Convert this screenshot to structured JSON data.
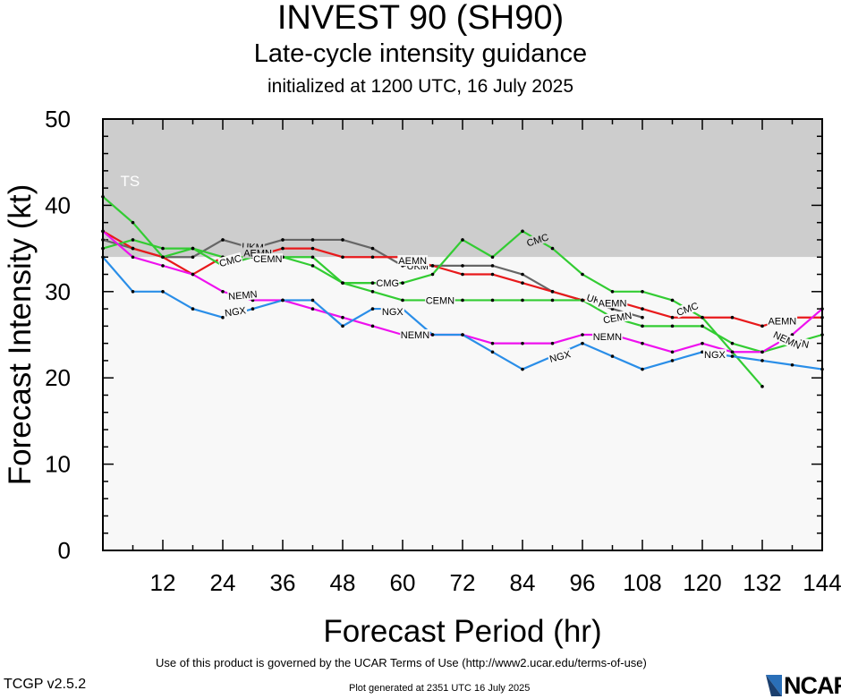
{
  "header": {
    "title": "INVEST 90 (SH90)",
    "subtitle": "Late-cycle intensity guidance",
    "init_line": "initialized at 1200 UTC, 16 July 2025"
  },
  "footer": {
    "terms": "Use of this product is governed by the UCAR Terms of Use (http://www2.ucar.edu/terms-of-use)",
    "version": "TCGP v2.5.2",
    "generated": "Plot generated at 2351 UTC   16 July 2025",
    "logo_text": "NCAR"
  },
  "chart_data": {
    "type": "line",
    "title": "INVEST 90 (SH90)",
    "xlabel": "Forecast Period (hr)",
    "ylabel": "Forecast Intensity (kt)",
    "xlim": [
      0,
      144
    ],
    "ylim": [
      0,
      50
    ],
    "xticks": [
      12,
      24,
      36,
      48,
      60,
      72,
      84,
      96,
      108,
      120,
      132,
      144
    ],
    "yticks": [
      0,
      10,
      20,
      30,
      40,
      50
    ],
    "bands": [
      {
        "label": "TS",
        "from": 34,
        "to": 50,
        "color": "#cdcdcd"
      },
      {
        "label": "",
        "from": 0,
        "to": 34,
        "color": "#f8f8f8"
      }
    ],
    "series": [
      {
        "name": "UKM",
        "color": "#666666",
        "x": [
          0,
          6,
          12,
          18,
          24,
          30,
          36,
          42,
          48,
          54,
          60,
          66,
          72,
          78,
          84,
          90,
          96,
          102,
          108
        ],
        "y": [
          36,
          35,
          34,
          34,
          36,
          35,
          36,
          36,
          36,
          35,
          33,
          33,
          33,
          33,
          32,
          30,
          29,
          28,
          27
        ],
        "labels": [
          {
            "x": 30,
            "y": 35.2,
            "angle": 3
          },
          {
            "x": 63,
            "y": 33,
            "angle": 0
          },
          {
            "x": 99,
            "y": 29,
            "angle": 18
          }
        ]
      },
      {
        "name": "AEMN",
        "color": "#e8191b",
        "x": [
          0,
          6,
          12,
          18,
          24,
          30,
          36,
          42,
          48,
          54,
          60,
          66,
          72,
          78,
          84,
          90,
          96,
          102,
          108,
          114,
          120,
          126,
          132,
          138,
          144
        ],
        "y": [
          37,
          35,
          34,
          32,
          34,
          34,
          35,
          35,
          34,
          34,
          34,
          33,
          32,
          32,
          31,
          30,
          29,
          29,
          28,
          27,
          27,
          27,
          26,
          27,
          27
        ],
        "labels": [
          {
            "x": 31,
            "y": 34.5,
            "angle": 0
          },
          {
            "x": 62,
            "y": 33.6,
            "angle": 0
          },
          {
            "x": 102,
            "y": 28.7,
            "angle": 0
          },
          {
            "x": 136,
            "y": 26.6,
            "angle": 0
          }
        ]
      },
      {
        "name": "CMC",
        "color": "#33cc33",
        "x": [
          0,
          6,
          12,
          18,
          24,
          30,
          36,
          42,
          48,
          54,
          60,
          66,
          72,
          78,
          84,
          90,
          96,
          102,
          108,
          114,
          120,
          126,
          132
        ],
        "y": [
          41,
          38,
          34,
          35,
          33,
          34,
          34,
          33,
          31,
          31,
          31,
          32,
          36,
          34,
          37,
          35,
          32,
          30,
          30,
          29,
          27,
          23,
          19
        ],
        "labels": [
          {
            "x": 25.5,
            "y": 33.6,
            "angle": -15
          },
          {
            "x": 87,
            "y": 36,
            "angle": -18
          },
          {
            "x": 117,
            "y": 28,
            "angle": -20
          }
        ]
      },
      {
        "name": "CMG",
        "color": "#33cc33",
        "x": [
          48,
          54,
          60
        ],
        "y": [
          31,
          31,
          31
        ],
        "labels": [
          {
            "x": 57,
            "y": 31,
            "angle": 0
          }
        ]
      },
      {
        "name": "CEMN",
        "color": "#33cc33",
        "x": [
          0,
          6,
          12,
          18,
          24,
          30,
          36,
          42,
          48,
          54,
          60,
          66,
          72,
          78,
          84,
          90,
          96,
          102,
          108,
          114,
          120,
          126,
          132,
          138,
          144
        ],
        "y": [
          35,
          36,
          35,
          35,
          34,
          34,
          34,
          34,
          31,
          30,
          29,
          29,
          29,
          29,
          29,
          29,
          29,
          27,
          26,
          26,
          26,
          24,
          23,
          24,
          25
        ],
        "labels": [
          {
            "x": 33,
            "y": 33.8,
            "angle": 0
          },
          {
            "x": 67.5,
            "y": 29,
            "angle": 0
          },
          {
            "x": 103,
            "y": 27,
            "angle": -10
          },
          {
            "x": 138.5,
            "y": 24.2,
            "angle": 12
          }
        ]
      },
      {
        "name": "NEMN",
        "color": "#ee11ee",
        "x": [
          0,
          6,
          12,
          18,
          24,
          30,
          36,
          42,
          48,
          54,
          60,
          66,
          72,
          78,
          84,
          90,
          96,
          102,
          108,
          114,
          120,
          126,
          132,
          138,
          144
        ],
        "y": [
          37,
          34,
          33,
          32,
          30,
          29,
          29,
          28,
          27,
          26,
          25,
          25,
          25,
          24,
          24,
          24,
          25,
          25,
          24,
          23,
          24,
          23,
          23,
          25,
          28
        ],
        "labels": [
          {
            "x": 28,
            "y": 29.6,
            "angle": -5
          },
          {
            "x": 62.5,
            "y": 25,
            "angle": 0
          },
          {
            "x": 101,
            "y": 24.8,
            "angle": 0
          },
          {
            "x": 137,
            "y": 24.4,
            "angle": 25
          }
        ]
      },
      {
        "name": "NGX",
        "color": "#2a8ee8",
        "x": [
          0,
          6,
          12,
          18,
          24,
          30,
          36,
          42,
          48,
          54,
          60,
          66,
          72,
          78,
          84,
          90,
          96,
          102,
          108,
          114,
          120,
          126,
          132,
          138,
          144
        ],
        "y": [
          34,
          30,
          30,
          28,
          27,
          28,
          29,
          29,
          26,
          28,
          28,
          25,
          25,
          23,
          21,
          22.5,
          24,
          22.5,
          21,
          22,
          23,
          22.5,
          22,
          21.5,
          21
        ],
        "labels": [
          {
            "x": 26.5,
            "y": 27.7,
            "angle": -8
          },
          {
            "x": 58,
            "y": 27.7,
            "angle": 0
          },
          {
            "x": 91.5,
            "y": 22.5,
            "angle": -15
          },
          {
            "x": 122.5,
            "y": 22.7,
            "angle": 0
          }
        ]
      }
    ]
  }
}
